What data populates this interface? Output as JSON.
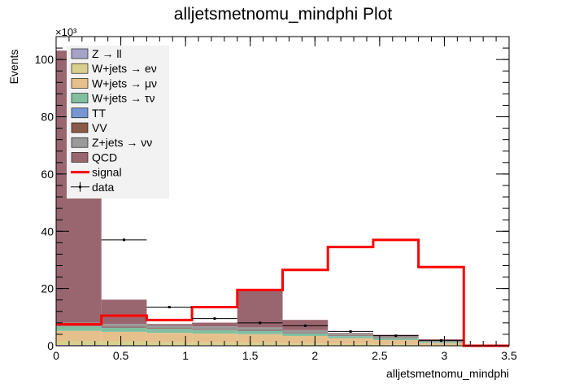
{
  "title": "alljetsmetnomu_mindphi Plot",
  "xlabel": "alljetsmetnomu_mindphi",
  "ylabel": "Events",
  "y_multiplier": "×10³",
  "chart_data": {
    "type": "bar",
    "stacked": true,
    "xlim": [
      0,
      3.5
    ],
    "ylim": [
      0,
      108000
    ],
    "bin_edges": [
      0,
      0.35,
      0.7,
      1.05,
      1.4,
      1.75,
      2.1,
      2.45,
      2.8,
      3.15,
      3.5
    ],
    "x_ticks": [
      {
        "v": 0,
        "label": "0"
      },
      {
        "v": 0.5,
        "label": "0.5"
      },
      {
        "v": 1,
        "label": "1"
      },
      {
        "v": 1.5,
        "label": "1.5"
      },
      {
        "v": 2,
        "label": "2"
      },
      {
        "v": 2.5,
        "label": "2.5"
      },
      {
        "v": 3,
        "label": "3"
      },
      {
        "v": 3.5,
        "label": "3.5"
      }
    ],
    "y_ticks": [
      {
        "v": 0,
        "label": "0"
      },
      {
        "v": 20000,
        "label": "20"
      },
      {
        "v": 40000,
        "label": "40"
      },
      {
        "v": 60000,
        "label": "60"
      },
      {
        "v": 80000,
        "label": "80"
      },
      {
        "v": 100000,
        "label": "100"
      }
    ],
    "legend_position": "top-left",
    "series": [
      {
        "name": "Z → ll",
        "color": "#a6a2c8",
        "values": [
          300,
          250,
          200,
          180,
          150,
          120,
          100,
          80,
          60,
          0
        ]
      },
      {
        "name": "W+jets → eν",
        "color": "#d8d08e",
        "values": [
          1400,
          1300,
          1100,
          1000,
          900,
          700,
          550,
          400,
          200,
          0
        ]
      },
      {
        "name": "W+jets → μν",
        "color": "#e6c08c",
        "values": [
          3500,
          3300,
          3200,
          3100,
          3000,
          2600,
          2000,
          1500,
          700,
          0
        ]
      },
      {
        "name": "W+jets → τν",
        "color": "#80c0a0",
        "values": [
          1600,
          1400,
          1300,
          1200,
          1100,
          900,
          700,
          550,
          400,
          0
        ]
      },
      {
        "name": "TT",
        "color": "#7896d2",
        "values": [
          120,
          110,
          100,
          100,
          100,
          80,
          60,
          50,
          40,
          0
        ]
      },
      {
        "name": "VV",
        "color": "#8c5a4a",
        "values": [
          400,
          350,
          300,
          300,
          280,
          250,
          200,
          150,
          100,
          0
        ]
      },
      {
        "name": "Z+jets → νν",
        "color": "#9a9a9a",
        "values": [
          800,
          900,
          900,
          900,
          900,
          800,
          700,
          600,
          400,
          0
        ]
      },
      {
        "name": "QCD",
        "color": "#996670",
        "values": [
          95000,
          8500,
          500,
          1300,
          13200,
          3600,
          200,
          500,
          400,
          0
        ]
      }
    ],
    "signal": {
      "name": "signal",
      "color": "#ff0000",
      "values": [
        7500,
        10500,
        9000,
        13500,
        19500,
        26500,
        34500,
        37000,
        27500,
        0
      ]
    },
    "data": {
      "name": "data",
      "values": [
        null,
        37000,
        13500,
        9500,
        8000,
        7000,
        5000,
        3500,
        1800,
        null
      ]
    }
  }
}
